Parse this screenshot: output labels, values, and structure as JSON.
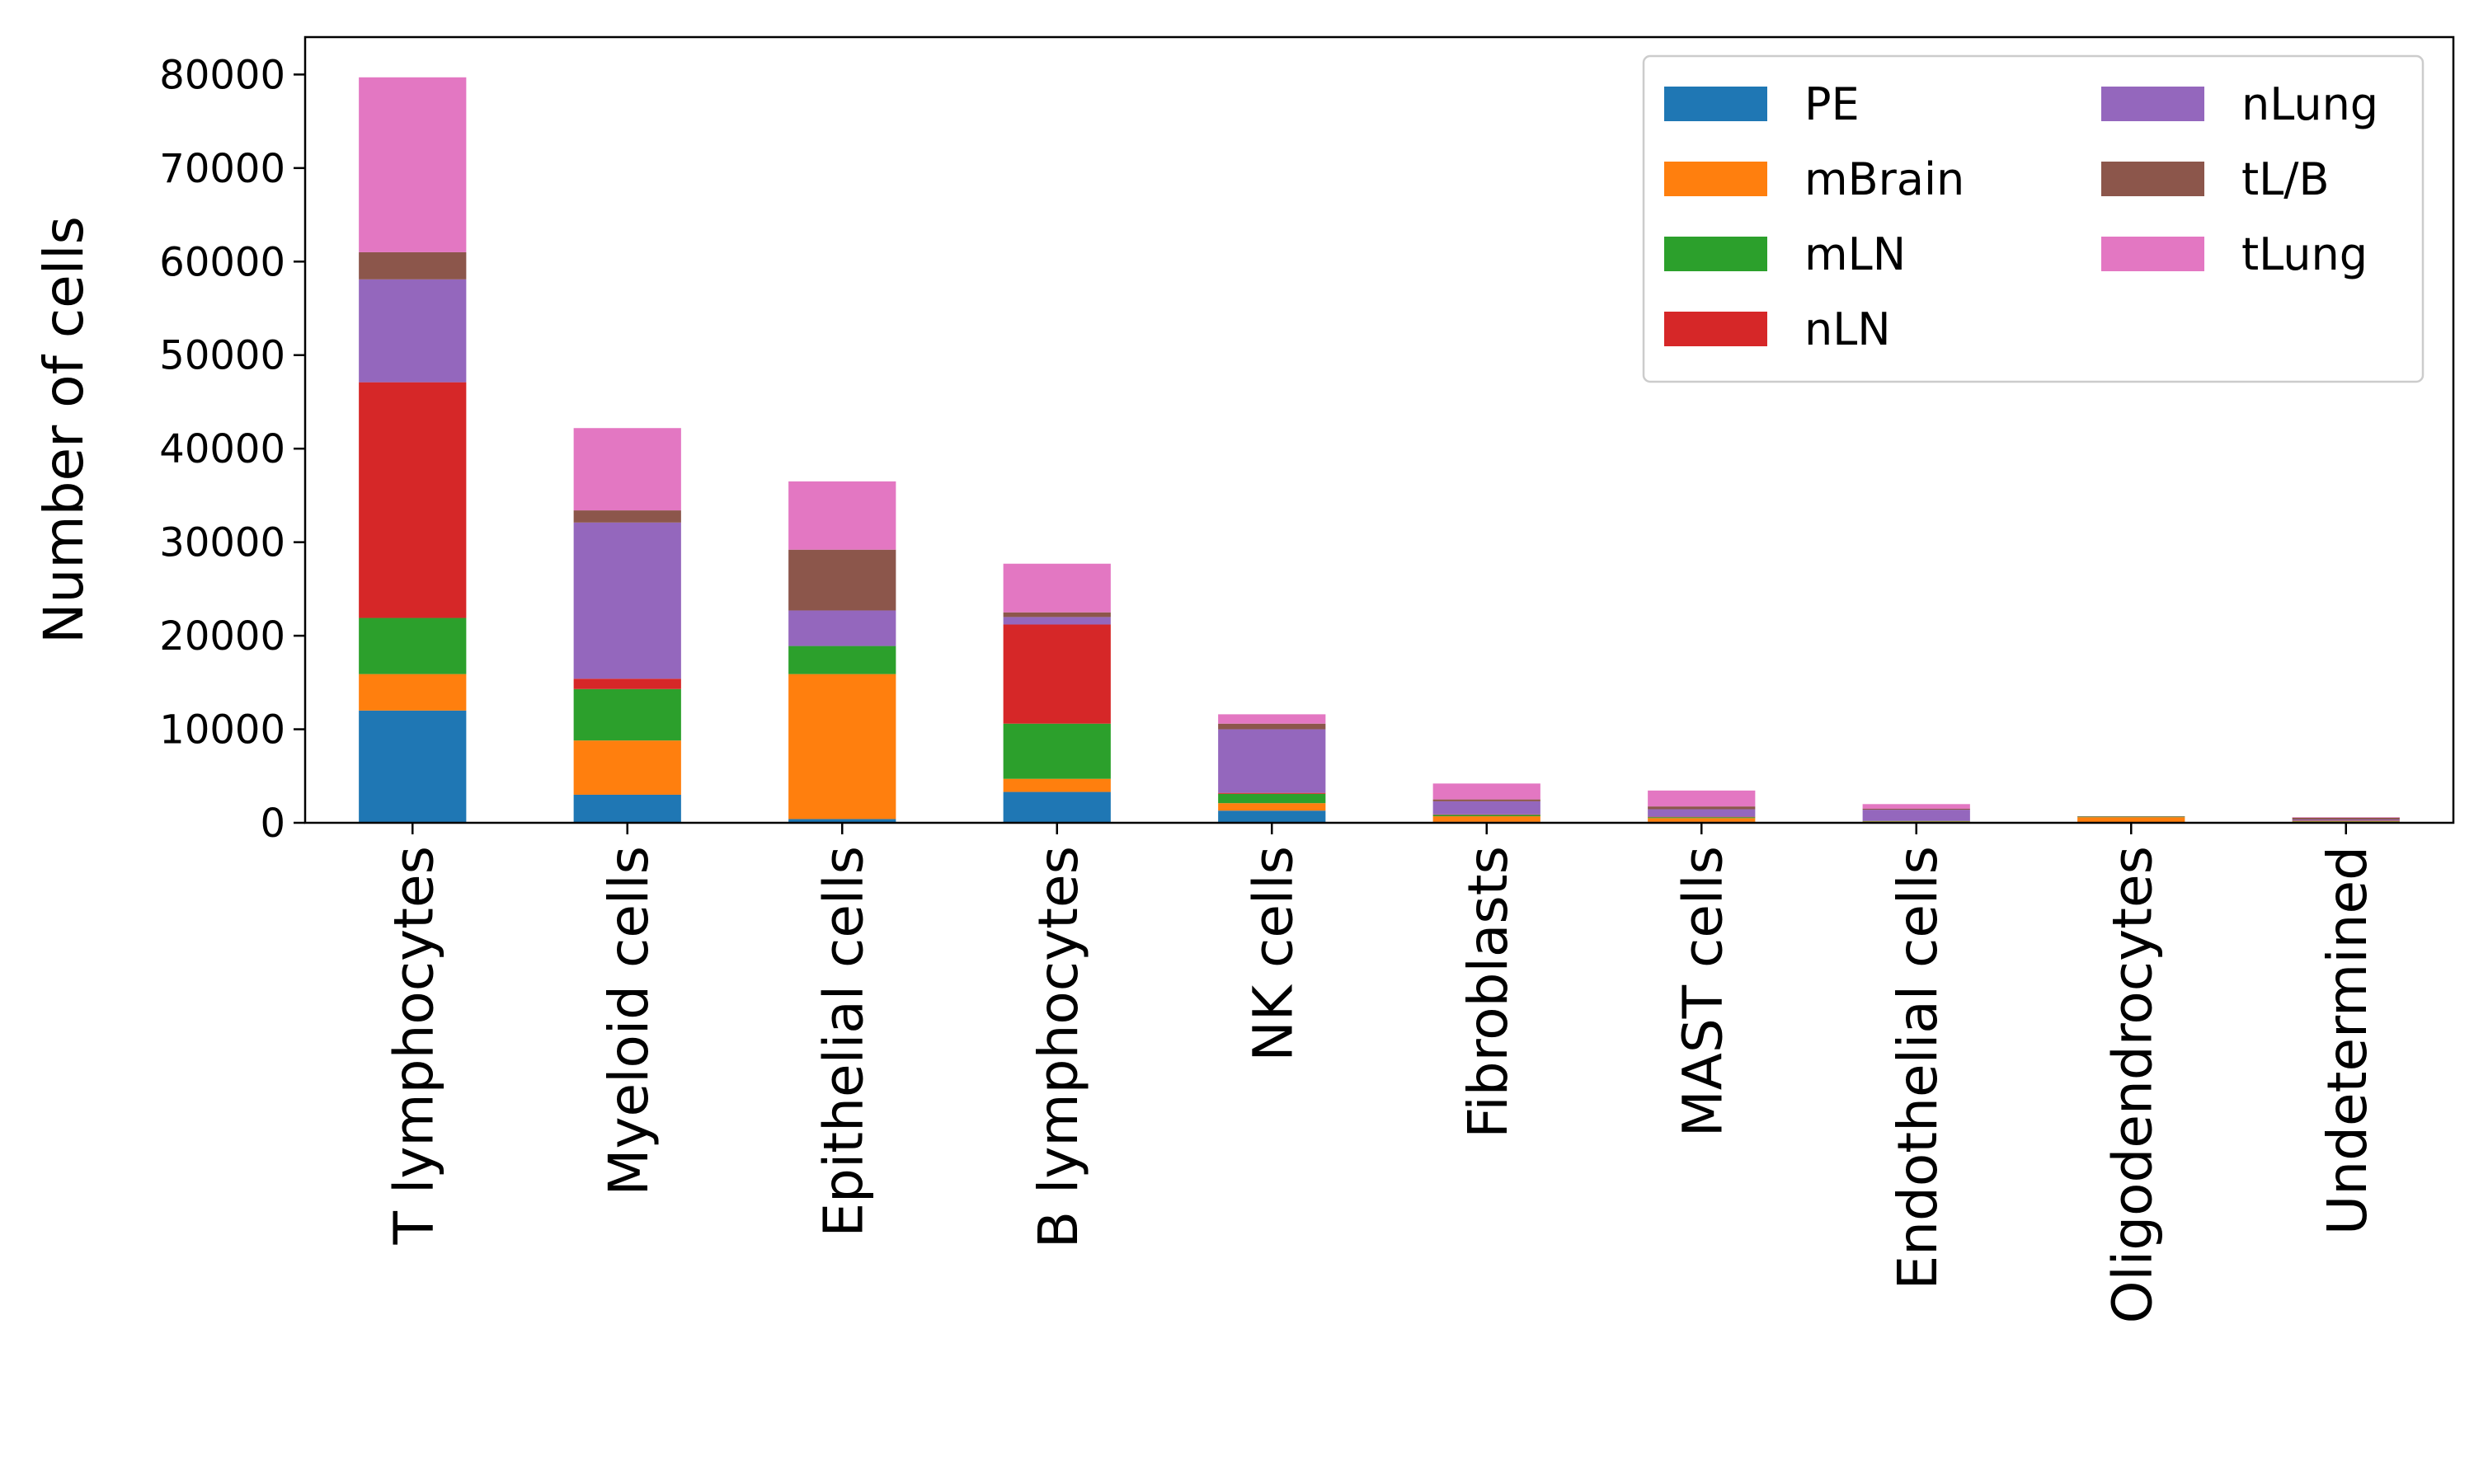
{
  "chart_data": {
    "type": "bar",
    "stacked": true,
    "title": "",
    "xlabel": "",
    "ylabel": "Number of cells",
    "ylim": [
      0,
      84000
    ],
    "yticks": [
      0,
      10000,
      20000,
      30000,
      40000,
      50000,
      60000,
      70000,
      80000
    ],
    "grid": false,
    "legend": {
      "placement": "top-right",
      "columns": 2
    },
    "categories": [
      "T lymphocytes",
      "Myeloid cells",
      "Epithelial cells",
      "B lymphocytes",
      "NK cells",
      "Fibroblasts",
      "MAST cells",
      "Endothelial cells",
      "Oligodendrocytes",
      "Undetermined"
    ],
    "series": [
      {
        "name": "PE",
        "color": "#1f77b4",
        "values": [
          12000,
          3000,
          400,
          3300,
          1300,
          100,
          100,
          50,
          0,
          50
        ]
      },
      {
        "name": "mBrain",
        "color": "#ff7f0e",
        "values": [
          3900,
          5800,
          15500,
          1400,
          800,
          600,
          400,
          100,
          600,
          100
        ]
      },
      {
        "name": "mLN",
        "color": "#2ca02c",
        "values": [
          6000,
          5500,
          3000,
          5900,
          1000,
          150,
          100,
          50,
          50,
          50
        ]
      },
      {
        "name": "nLN",
        "color": "#d62728",
        "values": [
          25200,
          1100,
          0,
          10600,
          100,
          50,
          50,
          0,
          0,
          50
        ]
      },
      {
        "name": "nLung",
        "color": "#9467bd",
        "values": [
          11000,
          16700,
          3800,
          800,
          6800,
          1400,
          800,
          1200,
          0,
          100
        ]
      },
      {
        "name": "tL/B",
        "color": "#8c564b",
        "values": [
          2900,
          1300,
          6500,
          500,
          600,
          200,
          300,
          100,
          50,
          200
        ]
      },
      {
        "name": "tLung",
        "color": "#e377c2",
        "values": [
          18700,
          8800,
          7300,
          5200,
          1000,
          1700,
          1700,
          500,
          0,
          50
        ]
      }
    ]
  }
}
